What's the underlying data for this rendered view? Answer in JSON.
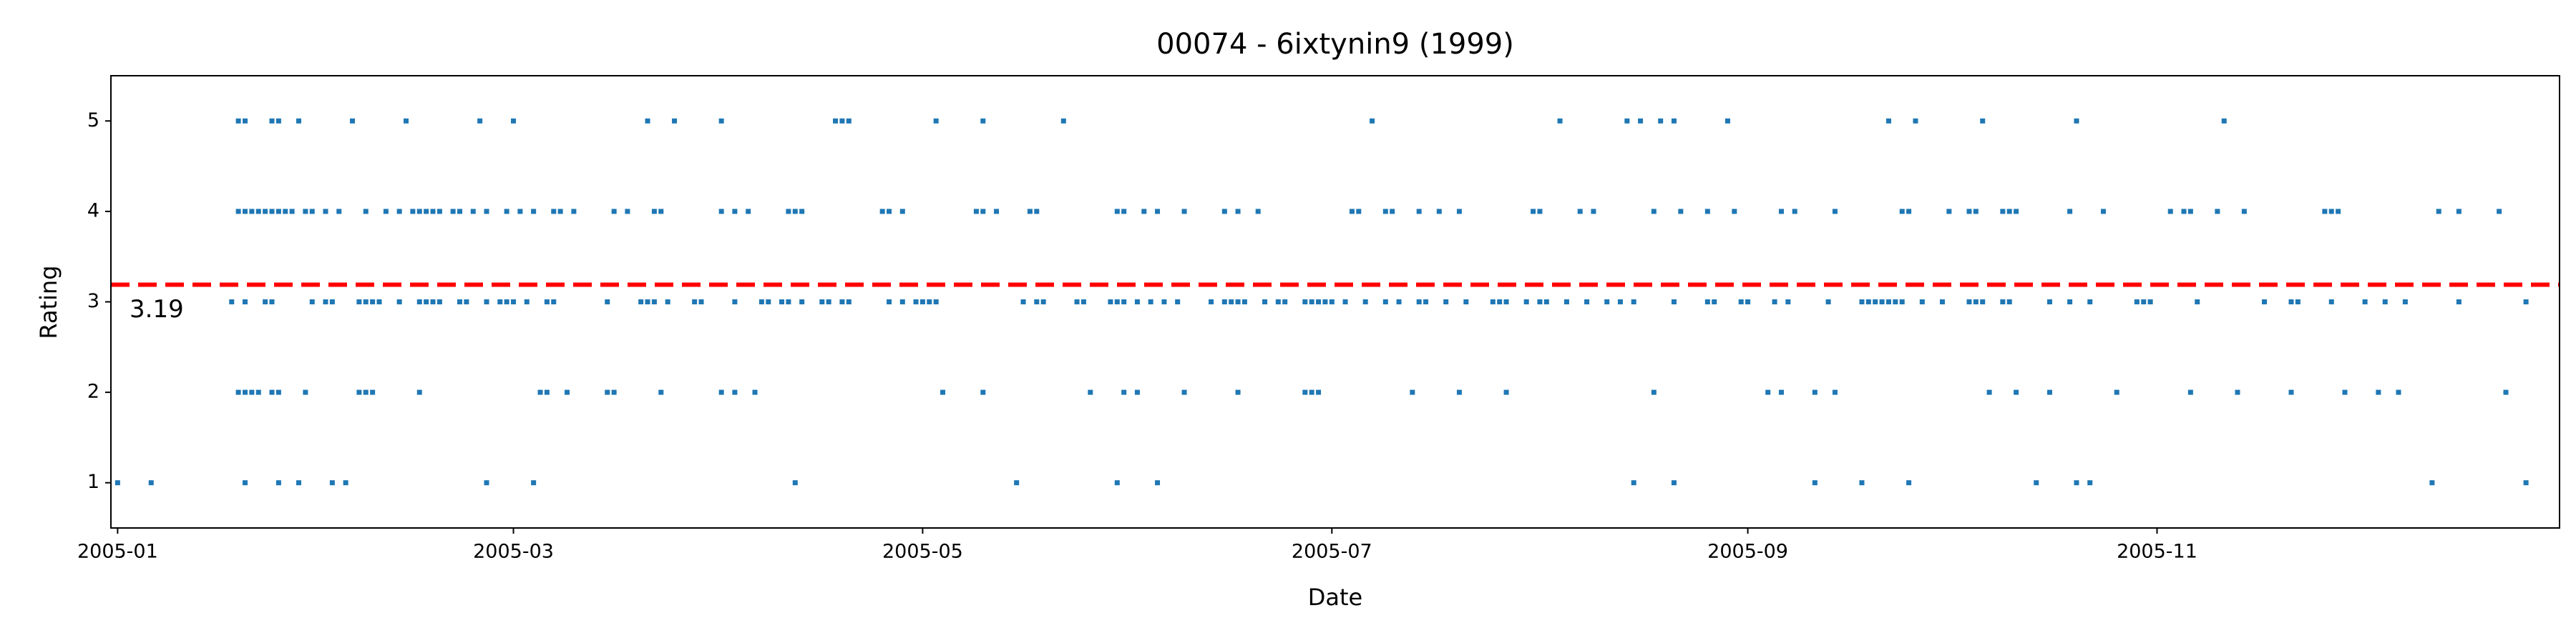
{
  "chart_data": {
    "type": "scatter",
    "title": "00074 - 6ixtynin9 (1999)",
    "x_label": "Date",
    "y_label": "Rating",
    "xlim": [
      -1,
      364
    ],
    "xticks": [
      {
        "value": 0,
        "label": "2005-01"
      },
      {
        "value": 59,
        "label": "2005-03"
      },
      {
        "value": 120,
        "label": "2005-05"
      },
      {
        "value": 181,
        "label": "2005-07"
      },
      {
        "value": 243,
        "label": "2005-09"
      },
      {
        "value": 304,
        "label": "2005-11"
      }
    ],
    "ylim": [
      0.5,
      5.5
    ],
    "yticks": [
      1,
      2,
      3,
      4,
      5
    ],
    "mean_line": {
      "value": 3.19,
      "color": "#ff0000"
    },
    "series": [
      {
        "color": "#1f77b4",
        "x": [
          18,
          19,
          23,
          24,
          27,
          35,
          43,
          54,
          59,
          79,
          83,
          90,
          107,
          108,
          109,
          122,
          129,
          141,
          187,
          215,
          225,
          227,
          230,
          232,
          240,
          264,
          268,
          278,
          292,
          314
        ],
        "values": [
          5,
          5,
          5,
          5,
          5,
          5,
          5,
          5,
          5,
          5,
          5,
          5,
          5,
          5,
          5,
          5,
          5,
          5,
          5,
          5,
          5,
          5,
          5,
          5,
          5,
          5,
          5,
          5,
          5,
          5
        ]
      },
      {
        "color": "#1f77b4",
        "x": [
          18,
          19,
          20,
          21,
          22,
          23,
          24,
          25,
          26,
          28,
          29,
          31,
          33,
          37,
          40,
          42,
          44,
          45,
          46,
          47,
          48,
          50,
          51,
          53,
          55,
          58,
          60,
          62,
          65,
          66,
          68,
          74,
          76,
          80,
          81,
          90,
          92,
          94,
          100,
          101,
          102,
          114,
          115,
          117,
          128,
          129,
          131,
          136,
          137,
          149,
          150,
          153,
          155,
          159,
          165,
          167,
          170,
          184,
          185,
          189,
          190,
          194,
          197,
          200,
          211,
          212,
          218,
          220,
          229,
          233,
          237,
          241,
          248,
          250,
          256,
          266,
          267,
          273,
          276,
          277,
          281,
          282,
          283,
          291,
          296,
          306,
          308,
          309,
          313,
          317,
          329,
          330,
          331,
          346,
          349,
          355
        ],
        "values": [
          4,
          4,
          4,
          4,
          4,
          4,
          4,
          4,
          4,
          4,
          4,
          4,
          4,
          4,
          4,
          4,
          4,
          4,
          4,
          4,
          4,
          4,
          4,
          4,
          4,
          4,
          4,
          4,
          4,
          4,
          4,
          4,
          4,
          4,
          4,
          4,
          4,
          4,
          4,
          4,
          4,
          4,
          4,
          4,
          4,
          4,
          4,
          4,
          4,
          4,
          4,
          4,
          4,
          4,
          4,
          4,
          4,
          4,
          4,
          4,
          4,
          4,
          4,
          4,
          4,
          4,
          4,
          4,
          4,
          4,
          4,
          4,
          4,
          4,
          4,
          4,
          4,
          4,
          4,
          4,
          4,
          4,
          4,
          4,
          4,
          4,
          4,
          4,
          4,
          4,
          4,
          4,
          4,
          4,
          4,
          4
        ]
      },
      {
        "color": "#1f77b4",
        "x": [
          17,
          19,
          22,
          23,
          29,
          31,
          32,
          36,
          37,
          38,
          39,
          42,
          45,
          46,
          47,
          48,
          51,
          52,
          55,
          57,
          58,
          59,
          61,
          64,
          65,
          73,
          78,
          79,
          80,
          82,
          86,
          87,
          92,
          96,
          97,
          99,
          100,
          102,
          105,
          106,
          108,
          109,
          115,
          117,
          119,
          120,
          121,
          122,
          135,
          137,
          138,
          143,
          144,
          148,
          149,
          150,
          152,
          154,
          156,
          158,
          163,
          165,
          166,
          167,
          168,
          171,
          173,
          174,
          177,
          178,
          179,
          180,
          181,
          183,
          186,
          189,
          191,
          194,
          195,
          198,
          201,
          205,
          206,
          207,
          210,
          212,
          213,
          216,
          219,
          222,
          224,
          226,
          232,
          237,
          238,
          242,
          243,
          247,
          249,
          255,
          260,
          261,
          262,
          263,
          264,
          265,
          266,
          269,
          272,
          276,
          277,
          278,
          281,
          282,
          288,
          291,
          294,
          301,
          302,
          303,
          310,
          320,
          324,
          325,
          330,
          335,
          338,
          341,
          349,
          359
        ],
        "values": [
          3,
          3,
          3,
          3,
          3,
          3,
          3,
          3,
          3,
          3,
          3,
          3,
          3,
          3,
          3,
          3,
          3,
          3,
          3,
          3,
          3,
          3,
          3,
          3,
          3,
          3,
          3,
          3,
          3,
          3,
          3,
          3,
          3,
          3,
          3,
          3,
          3,
          3,
          3,
          3,
          3,
          3,
          3,
          3,
          3,
          3,
          3,
          3,
          3,
          3,
          3,
          3,
          3,
          3,
          3,
          3,
          3,
          3,
          3,
          3,
          3,
          3,
          3,
          3,
          3,
          3,
          3,
          3,
          3,
          3,
          3,
          3,
          3,
          3,
          3,
          3,
          3,
          3,
          3,
          3,
          3,
          3,
          3,
          3,
          3,
          3,
          3,
          3,
          3,
          3,
          3,
          3,
          3,
          3,
          3,
          3,
          3,
          3,
          3,
          3,
          3,
          3,
          3,
          3,
          3,
          3,
          3,
          3,
          3,
          3,
          3,
          3,
          3,
          3,
          3,
          3,
          3,
          3,
          3,
          3,
          3,
          3,
          3,
          3,
          3,
          3,
          3,
          3,
          3,
          3
        ]
      },
      {
        "color": "#1f77b4",
        "x": [
          18,
          19,
          20,
          21,
          23,
          24,
          28,
          36,
          37,
          38,
          45,
          63,
          64,
          67,
          73,
          74,
          81,
          90,
          92,
          95,
          123,
          129,
          145,
          150,
          152,
          159,
          167,
          177,
          178,
          179,
          193,
          200,
          207,
          229,
          246,
          248,
          253,
          256,
          279,
          283,
          288,
          298,
          309,
          316,
          324,
          332,
          337,
          340,
          356
        ],
        "values": [
          2,
          2,
          2,
          2,
          2,
          2,
          2,
          2,
          2,
          2,
          2,
          2,
          2,
          2,
          2,
          2,
          2,
          2,
          2,
          2,
          2,
          2,
          2,
          2,
          2,
          2,
          2,
          2,
          2,
          2,
          2,
          2,
          2,
          2,
          2,
          2,
          2,
          2,
          2,
          2,
          2,
          2,
          2,
          2,
          2,
          2,
          2,
          2,
          2
        ]
      },
      {
        "color": "#1f77b4",
        "x": [
          0,
          5,
          19,
          24,
          27,
          32,
          34,
          55,
          62,
          101,
          134,
          149,
          155,
          226,
          232,
          253,
          260,
          267,
          286,
          292,
          294,
          345,
          359
        ],
        "values": [
          1,
          1,
          1,
          1,
          1,
          1,
          1,
          1,
          1,
          1,
          1,
          1,
          1,
          1,
          1,
          1,
          1,
          1,
          1,
          1,
          1,
          1,
          1
        ]
      }
    ]
  }
}
